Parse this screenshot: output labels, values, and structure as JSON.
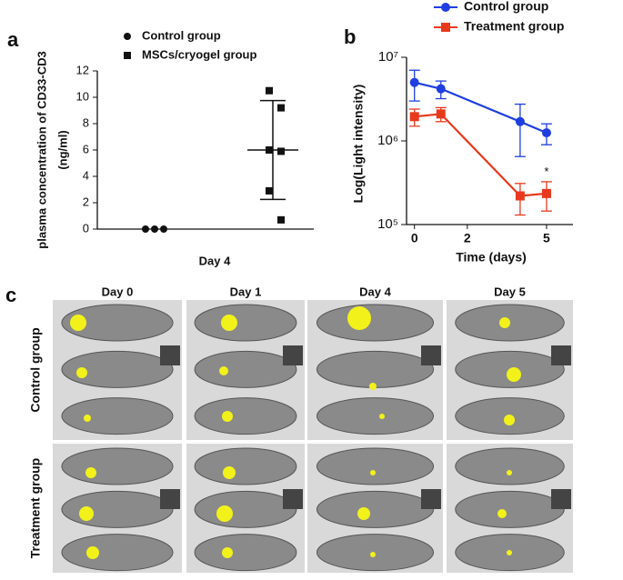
{
  "panel_labels": [
    "a",
    "b",
    "c"
  ],
  "chart_data": [
    {
      "type": "dotplot",
      "ylabel": [
        "plasma concentration of CD33-CD3",
        "(ng/ml)"
      ],
      "xlabel": "Day 4",
      "ylim": [
        0,
        12
      ],
      "yticks": [
        0,
        2,
        4,
        6,
        8,
        10,
        12
      ],
      "series": [
        {
          "name": "Control group",
          "marker": "circle",
          "color": "#111111",
          "values": [
            0,
            0,
            0
          ]
        },
        {
          "name": "MSCs/cryogel group",
          "marker": "square",
          "color": "#111111",
          "values": [
            10.5,
            9.2,
            6,
            5.9,
            2.9,
            0.7
          ],
          "mean": 6,
          "sd": 3.75
        }
      ]
    },
    {
      "type": "line",
      "log_y": true,
      "ylabel": "Log(Light intensity)",
      "xlabel": "Time (days)",
      "xlim": [
        -0.3,
        6
      ],
      "xticks": [
        0,
        2,
        5
      ],
      "ylim": [
        100000,
        10000000
      ],
      "yticks": [
        {
          "value": 100000,
          "label": "10⁵"
        },
        {
          "value": 1000000,
          "label": "10⁶"
        },
        {
          "value": 10000000,
          "label": "10⁷"
        }
      ],
      "annotation": {
        "text": "*",
        "x": 5,
        "y": 420000
      },
      "series": [
        {
          "name": "Control group",
          "marker": "circle",
          "color": "#1f3ee0",
          "x": [
            0,
            1,
            4,
            5
          ],
          "values": [
            5000000,
            4200000,
            1700000,
            1250000
          ],
          "errors": [
            2000000,
            1000000,
            1050000,
            350000
          ]
        },
        {
          "name": "Treatment group",
          "marker": "square",
          "color": "#e8391d",
          "x": [
            0,
            1,
            4,
            5
          ],
          "values": [
            1950000,
            2100000,
            220000,
            235000
          ],
          "errors": [
            450000,
            400000,
            90000,
            90000
          ]
        }
      ]
    }
  ],
  "panel_c": {
    "columns": [
      "Day 0",
      "Day 1",
      "Day 4",
      "Day 5"
    ],
    "rows": [
      "Control group",
      "Treatment  group"
    ]
  }
}
